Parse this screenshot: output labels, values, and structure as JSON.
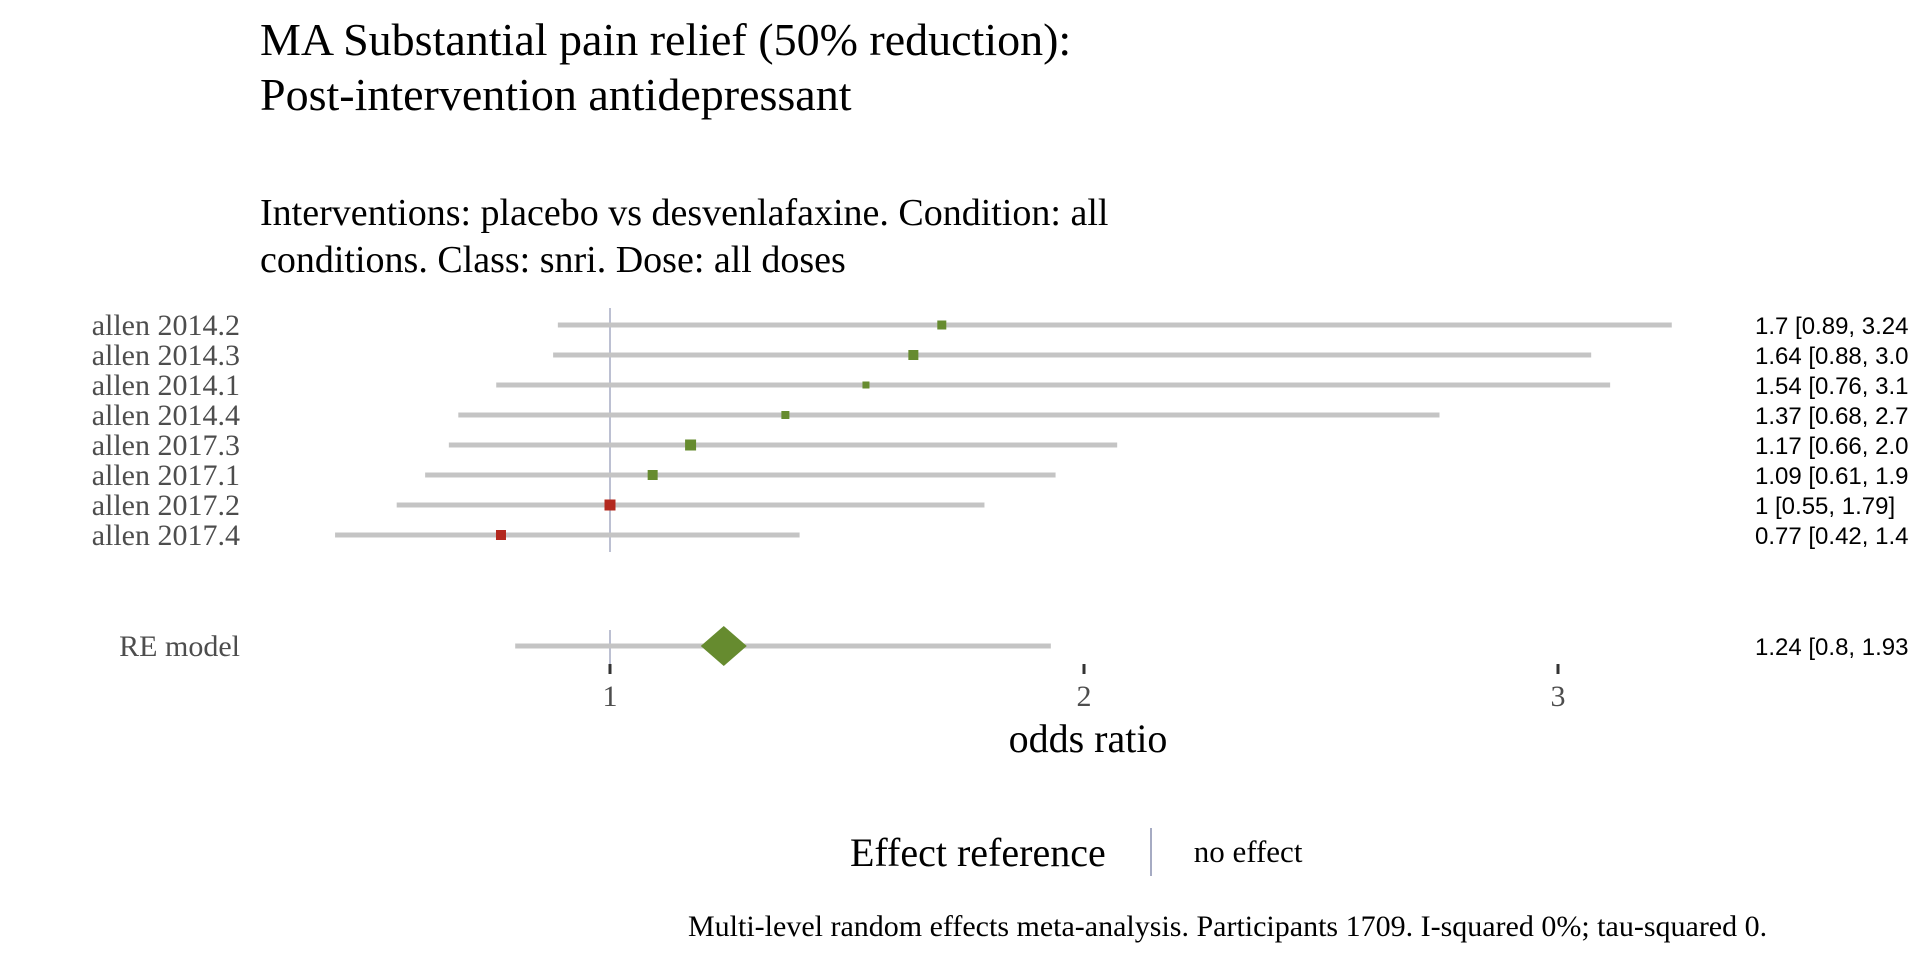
{
  "title": "MA Substantial pain relief (50% reduction): Post-intervention antidepressant",
  "subtitle": "Interventions: placebo vs desvenlafaxine. Condition: all conditions. Class: snri. Dose: all doses",
  "caption": "Multi-level random effects meta-analysis. Participants 1709. I-squared 0%; tau-squared 0.",
  "legend": {
    "title": "Effect reference",
    "item": "no effect"
  },
  "colors": {
    "favours": "#668b2f",
    "against": "#b3281e",
    "ci": "#c4c4c4",
    "reference": "#a6abc3",
    "tick": "#333333"
  },
  "chart_data": {
    "type": "forest",
    "xlabel": "odds ratio",
    "xlim": [
      0.43,
      3.8
    ],
    "xticks": [
      1,
      2,
      3
    ],
    "reference_line": 1,
    "grid": false,
    "legend_position": "bottom",
    "studies": [
      {
        "label": "allen 2014.2",
        "estimate": 1.7,
        "lower": 0.89,
        "upper": 3.24,
        "text": "1.7 [0.89, 3.24",
        "color": "#668b2f",
        "size": 9
      },
      {
        "label": "allen 2014.3",
        "estimate": 1.64,
        "lower": 0.88,
        "upper": 3.07,
        "text": "1.64 [0.88, 3.0",
        "color": "#668b2f",
        "size": 10
      },
      {
        "label": "allen 2014.1",
        "estimate": 1.54,
        "lower": 0.76,
        "upper": 3.11,
        "text": "1.54 [0.76, 3.1",
        "color": "#668b2f",
        "size": 7
      },
      {
        "label": "allen 2014.4",
        "estimate": 1.37,
        "lower": 0.68,
        "upper": 2.75,
        "text": "1.37 [0.68, 2.7",
        "color": "#668b2f",
        "size": 8
      },
      {
        "label": "allen 2017.3",
        "estimate": 1.17,
        "lower": 0.66,
        "upper": 2.07,
        "text": "1.17 [0.66, 2.0",
        "color": "#668b2f",
        "size": 11
      },
      {
        "label": "allen 2017.1",
        "estimate": 1.09,
        "lower": 0.61,
        "upper": 1.94,
        "text": "1.09 [0.61, 1.9",
        "color": "#668b2f",
        "size": 10
      },
      {
        "label": "allen 2017.2",
        "estimate": 1,
        "lower": 0.55,
        "upper": 1.79,
        "text": "1 [0.55, 1.79]",
        "color": "#b3281e",
        "size": 11
      },
      {
        "label": "allen 2017.4",
        "estimate": 0.77,
        "lower": 0.42,
        "upper": 1.4,
        "text": "0.77 [0.42, 1.4",
        "color": "#b3281e",
        "size": 10
      }
    ],
    "summary": {
      "label": "RE model",
      "estimate": 1.24,
      "lower": 0.8,
      "upper": 1.93,
      "text": "1.24 [0.8, 1.93"
    }
  }
}
